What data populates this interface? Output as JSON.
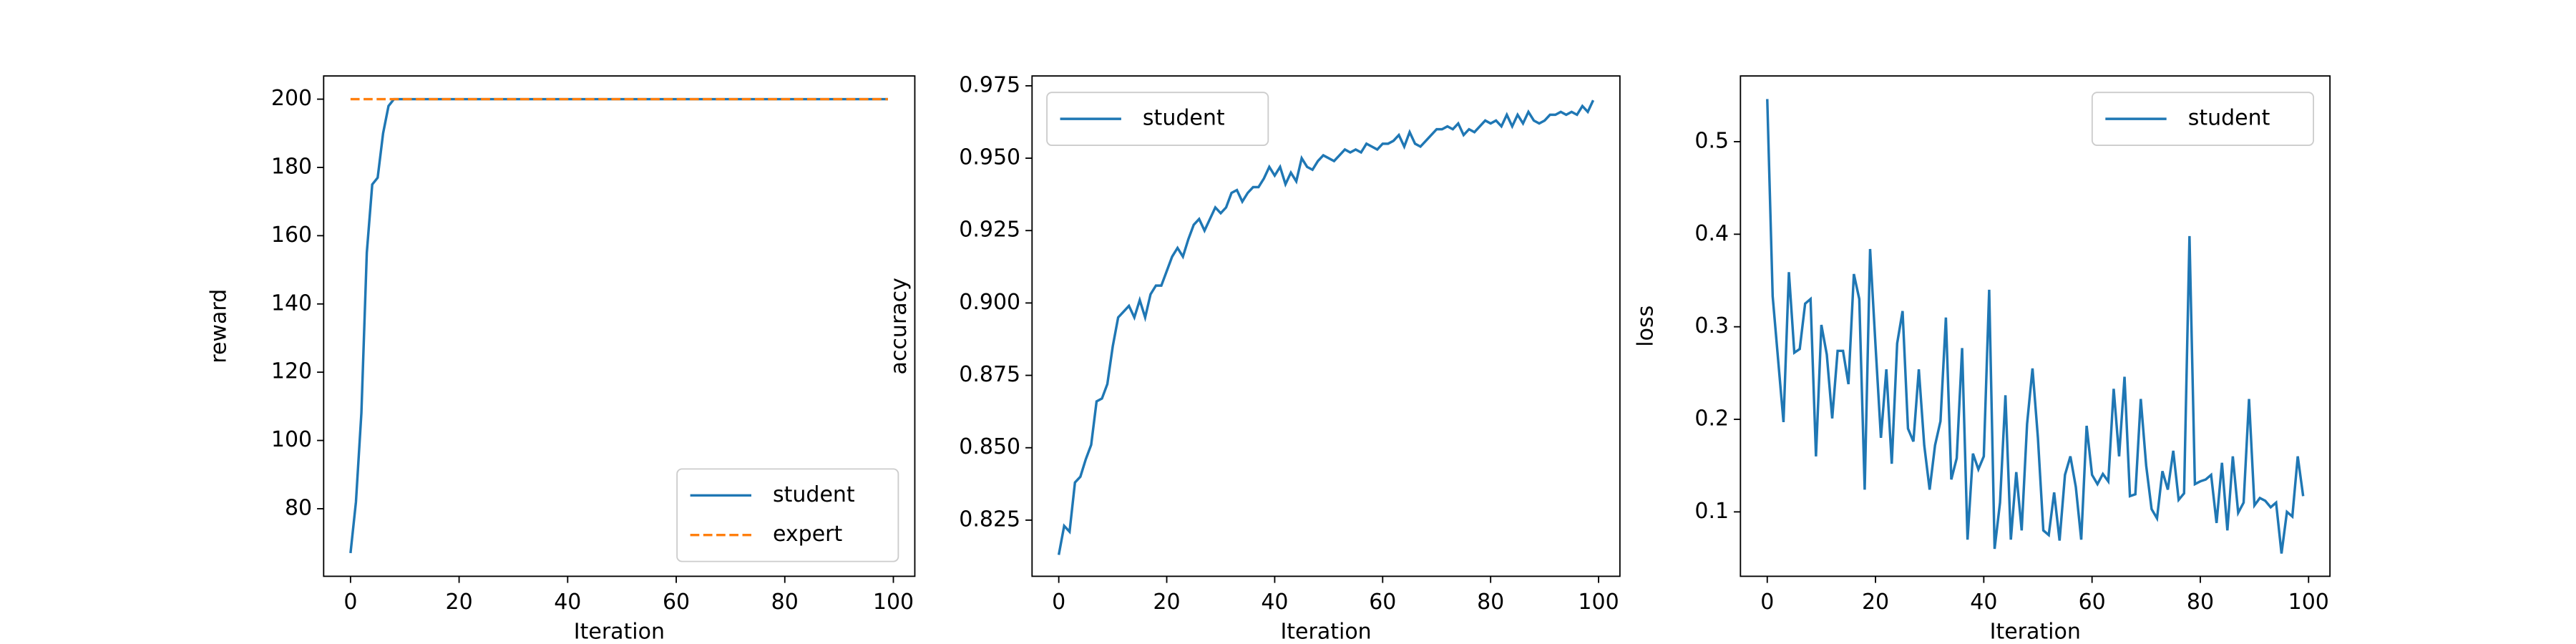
{
  "chart_data": [
    {
      "type": "line",
      "x": [
        0,
        1,
        2,
        3,
        4,
        5,
        6,
        7,
        8,
        9,
        10,
        11,
        12,
        13,
        14,
        15,
        16,
        17,
        18,
        19,
        20,
        21,
        22,
        23,
        24,
        25,
        26,
        27,
        28,
        29,
        30,
        31,
        32,
        33,
        34,
        35,
        36,
        37,
        38,
        39,
        40,
        41,
        42,
        43,
        44,
        45,
        46,
        47,
        48,
        49,
        50,
        51,
        52,
        53,
        54,
        55,
        56,
        57,
        58,
        59,
        60,
        61,
        62,
        63,
        64,
        65,
        66,
        67,
        68,
        69,
        70,
        71,
        72,
        73,
        74,
        75,
        76,
        77,
        78,
        79,
        80,
        81,
        82,
        83,
        84,
        85,
        86,
        87,
        88,
        89,
        90,
        91,
        92,
        93,
        94,
        95,
        96,
        97,
        98,
        99
      ],
      "series": [
        {
          "name": "student",
          "color": "#1f77b4",
          "linestyle": "solid",
          "values": [
            67,
            82,
            108,
            155,
            175,
            177,
            190,
            198,
            200,
            200,
            200,
            200,
            200,
            200,
            200,
            200,
            200,
            200,
            200,
            200,
            200,
            200,
            200,
            200,
            200,
            200,
            200,
            200,
            200,
            200,
            200,
            200,
            200,
            200,
            200,
            200,
            200,
            200,
            200,
            200,
            200,
            200,
            200,
            200,
            200,
            200,
            200,
            200,
            200,
            200,
            200,
            200,
            200,
            200,
            200,
            200,
            200,
            200,
            200,
            200,
            200,
            200,
            200,
            200,
            200,
            200,
            200,
            200,
            200,
            200,
            200,
            200,
            200,
            200,
            200,
            200,
            200,
            200,
            200,
            200,
            200,
            200,
            200,
            200,
            200,
            200,
            200,
            200,
            200,
            200,
            200,
            200,
            200,
            200,
            200,
            200,
            200,
            200,
            200,
            200
          ]
        },
        {
          "name": "expert",
          "color": "#ff7f0e",
          "linestyle": "dashed",
          "values": [
            200,
            200,
            200,
            200,
            200,
            200,
            200,
            200,
            200,
            200,
            200,
            200,
            200,
            200,
            200,
            200,
            200,
            200,
            200,
            200,
            200,
            200,
            200,
            200,
            200,
            200,
            200,
            200,
            200,
            200,
            200,
            200,
            200,
            200,
            200,
            200,
            200,
            200,
            200,
            200,
            200,
            200,
            200,
            200,
            200,
            200,
            200,
            200,
            200,
            200,
            200,
            200,
            200,
            200,
            200,
            200,
            200,
            200,
            200,
            200,
            200,
            200,
            200,
            200,
            200,
            200,
            200,
            200,
            200,
            200,
            200,
            200,
            200,
            200,
            200,
            200,
            200,
            200,
            200,
            200,
            200,
            200,
            200,
            200,
            200,
            200,
            200,
            200,
            200,
            200,
            200,
            200,
            200,
            200,
            200,
            200,
            200,
            200,
            200,
            200
          ]
        }
      ],
      "xlabel": "Iteration",
      "ylabel": "reward",
      "xlim": [
        -4.95,
        103.95
      ],
      "xticks": [
        0,
        20,
        40,
        60,
        80,
        100
      ],
      "ylim": [
        60.2,
        206.8
      ],
      "yticks": [
        80,
        100,
        120,
        140,
        160,
        180,
        200
      ],
      "legend": "lower right"
    },
    {
      "type": "line",
      "x": [
        0,
        1,
        2,
        3,
        4,
        5,
        6,
        7,
        8,
        9,
        10,
        11,
        12,
        13,
        14,
        15,
        16,
        17,
        18,
        19,
        20,
        21,
        22,
        23,
        24,
        25,
        26,
        27,
        28,
        29,
        30,
        31,
        32,
        33,
        34,
        35,
        36,
        37,
        38,
        39,
        40,
        41,
        42,
        43,
        44,
        45,
        46,
        47,
        48,
        49,
        50,
        51,
        52,
        53,
        54,
        55,
        56,
        57,
        58,
        59,
        60,
        61,
        62,
        63,
        64,
        65,
        66,
        67,
        68,
        69,
        70,
        71,
        72,
        73,
        74,
        75,
        76,
        77,
        78,
        79,
        80,
        81,
        82,
        83,
        84,
        85,
        86,
        87,
        88,
        89,
        90,
        91,
        92,
        93,
        94,
        95,
        96,
        97,
        98,
        99
      ],
      "series": [
        {
          "name": "student",
          "color": "#1f77b4",
          "linestyle": "solid",
          "values": [
            0.813,
            0.823,
            0.821,
            0.838,
            0.84,
            0.846,
            0.851,
            0.866,
            0.867,
            0.872,
            0.885,
            0.895,
            0.897,
            0.899,
            0.895,
            0.901,
            0.895,
            0.903,
            0.906,
            0.906,
            0.911,
            0.916,
            0.919,
            0.916,
            0.922,
            0.927,
            0.929,
            0.925,
            0.929,
            0.933,
            0.931,
            0.933,
            0.938,
            0.939,
            0.935,
            0.938,
            0.94,
            0.94,
            0.943,
            0.947,
            0.944,
            0.947,
            0.941,
            0.945,
            0.942,
            0.95,
            0.947,
            0.946,
            0.949,
            0.951,
            0.95,
            0.949,
            0.951,
            0.953,
            0.952,
            0.953,
            0.952,
            0.955,
            0.954,
            0.953,
            0.955,
            0.955,
            0.956,
            0.958,
            0.954,
            0.959,
            0.955,
            0.954,
            0.956,
            0.958,
            0.96,
            0.96,
            0.961,
            0.96,
            0.962,
            0.958,
            0.96,
            0.959,
            0.961,
            0.963,
            0.962,
            0.963,
            0.961,
            0.965,
            0.961,
            0.965,
            0.962,
            0.966,
            0.963,
            0.962,
            0.963,
            0.965,
            0.965,
            0.966,
            0.965,
            0.966,
            0.965,
            0.968,
            0.966,
            0.97
          ]
        }
      ],
      "xlabel": "Iteration",
      "ylabel": "accuracy",
      "xlim": [
        -4.95,
        103.95
      ],
      "xticks": [
        0,
        20,
        40,
        60,
        80,
        100
      ],
      "ylim": [
        0.8056,
        0.9784
      ],
      "yticks": [
        0.825,
        {
          "value": 0.85,
          "label": "0.850"
        },
        0.875,
        {
          "value": 0.9,
          "label": "0.900"
        },
        0.925,
        {
          "value": 0.95,
          "label": "0.950"
        },
        0.975
      ],
      "legend": "upper left"
    },
    {
      "type": "line",
      "x": [
        0,
        1,
        2,
        3,
        4,
        5,
        6,
        7,
        8,
        9,
        10,
        11,
        12,
        13,
        14,
        15,
        16,
        17,
        18,
        19,
        20,
        21,
        22,
        23,
        24,
        25,
        26,
        27,
        28,
        29,
        30,
        31,
        32,
        33,
        34,
        35,
        36,
        37,
        38,
        39,
        40,
        41,
        42,
        43,
        44,
        45,
        46,
        47,
        48,
        49,
        50,
        51,
        52,
        53,
        54,
        55,
        56,
        57,
        58,
        59,
        60,
        61,
        62,
        63,
        64,
        65,
        66,
        67,
        68,
        69,
        70,
        71,
        72,
        73,
        74,
        75,
        76,
        77,
        78,
        79,
        80,
        81,
        82,
        83,
        84,
        85,
        86,
        87,
        88,
        89,
        90,
        91,
        92,
        93,
        94,
        95,
        96,
        97,
        98,
        99
      ],
      "series": [
        {
          "name": "student",
          "color": "#1f77b4",
          "linestyle": "solid",
          "values": [
            0.546,
            0.333,
            0.265,
            0.197,
            0.359,
            0.272,
            0.276,
            0.325,
            0.33,
            0.16,
            0.302,
            0.27,
            0.201,
            0.274,
            0.274,
            0.238,
            0.357,
            0.33,
            0.124,
            0.384,
            0.28,
            0.18,
            0.254,
            0.152,
            0.282,
            0.317,
            0.19,
            0.176,
            0.254,
            0.172,
            0.124,
            0.172,
            0.198,
            0.31,
            0.135,
            0.158,
            0.277,
            0.07,
            0.163,
            0.146,
            0.16,
            0.34,
            0.06,
            0.11,
            0.226,
            0.07,
            0.143,
            0.08,
            0.195,
            0.255,
            0.18,
            0.08,
            0.075,
            0.121,
            0.069,
            0.14,
            0.16,
            0.127,
            0.07,
            0.193,
            0.14,
            0.13,
            0.141,
            0.133,
            0.233,
            0.16,
            0.246,
            0.117,
            0.119,
            0.222,
            0.15,
            0.103,
            0.093,
            0.144,
            0.124,
            0.166,
            0.113,
            0.12,
            0.398,
            0.13,
            0.133,
            0.135,
            0.14,
            0.088,
            0.153,
            0.08,
            0.16,
            0.099,
            0.11,
            0.222,
            0.107,
            0.115,
            0.112,
            0.105,
            0.11,
            0.055,
            0.1,
            0.095,
            0.16,
            0.117
          ]
        }
      ],
      "xlabel": "Iteration",
      "ylabel": "loss",
      "xlim": [
        -4.95,
        103.95
      ],
      "xticks": [
        0,
        20,
        40,
        60,
        80,
        100
      ],
      "ylim": [
        0.0304,
        0.571
      ],
      "yticks": [
        0.1,
        0.2,
        0.3,
        0.4,
        0.5
      ],
      "legend": "upper right"
    }
  ]
}
